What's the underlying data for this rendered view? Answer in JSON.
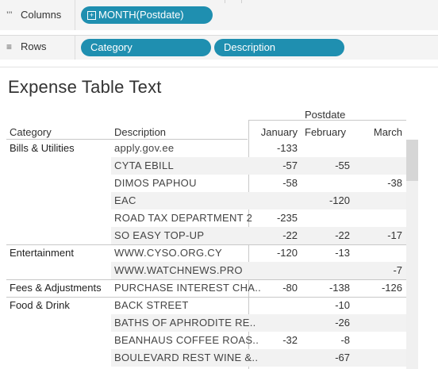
{
  "shelves": {
    "columns": {
      "label": "Columns",
      "icon": "columns-icon",
      "pills": [
        "MONTH(Postdate)"
      ]
    },
    "rows": {
      "label": "Rows",
      "icon": "rows-icon",
      "pills": [
        "Category",
        "Description"
      ]
    }
  },
  "view": {
    "title": "Expense Table Text",
    "column_group_header": "Postdate",
    "headers": {
      "category": "Category",
      "description": "Description",
      "months": [
        "January",
        "February",
        "March"
      ]
    },
    "rows": [
      {
        "category": "Bills & Utilities",
        "description": "apply.gov.ee",
        "jan": "-133",
        "feb": "",
        "mar": ""
      },
      {
        "category": "",
        "description": "CYTA EBILL",
        "jan": "-57",
        "feb": "-55",
        "mar": ""
      },
      {
        "category": "",
        "description": "DIMOS PAPHOU",
        "jan": "-58",
        "feb": "",
        "mar": "-38"
      },
      {
        "category": "",
        "description": "EAC",
        "jan": "",
        "feb": "-120",
        "mar": ""
      },
      {
        "category": "",
        "description": "ROAD TAX DEPARTMENT 2",
        "jan": "-235",
        "feb": "",
        "mar": ""
      },
      {
        "category": "",
        "description": "SO EASY TOP-UP",
        "jan": "-22",
        "feb": "-22",
        "mar": "-17"
      },
      {
        "category": "Entertainment",
        "description": "WWW.CYSO.ORG.CY",
        "jan": "-120",
        "feb": "-13",
        "mar": ""
      },
      {
        "category": "",
        "description": "WWW.WATCHNEWS.PRO",
        "jan": "",
        "feb": "",
        "mar": "-7"
      },
      {
        "category": "Fees & Adjustments",
        "description": "PURCHASE INTEREST CHA..",
        "jan": "-80",
        "feb": "-138",
        "mar": "-126"
      },
      {
        "category": "Food & Drink",
        "description": "BACK STREET",
        "jan": "",
        "feb": "-10",
        "mar": ""
      },
      {
        "category": "",
        "description": "BATHS OF APHRODITE RE..",
        "jan": "",
        "feb": "-26",
        "mar": ""
      },
      {
        "category": "",
        "description": "BEANHAUS COFFEE ROAS..",
        "jan": "-32",
        "feb": "-8",
        "mar": ""
      },
      {
        "category": "",
        "description": "BOULEVARD REST WINE &..",
        "jan": "",
        "feb": "-67",
        "mar": ""
      }
    ]
  },
  "colors": {
    "pill": "#1f8fb0",
    "shelf_bg": "#f4f4f4",
    "band": "#f2f2f2"
  }
}
